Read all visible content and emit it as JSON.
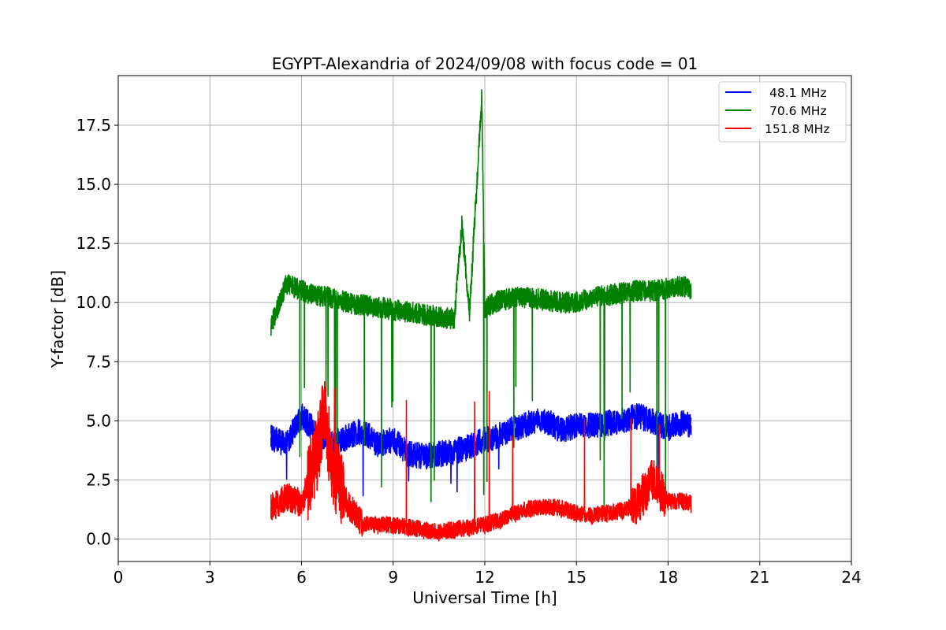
{
  "chart_data": {
    "type": "line",
    "title": "EGYPT-Alexandria of 2024/09/08 with focus code = 01",
    "xlabel": "Universal Time [h]",
    "ylabel": "Y-factor [dB]",
    "xlim": [
      0,
      24
    ],
    "ylim": [
      -0.95,
      19.6
    ],
    "xticks": [
      0,
      3,
      6,
      9,
      12,
      15,
      18,
      21,
      24
    ],
    "xtick_labels": [
      "0",
      "3",
      "6",
      "9",
      "12",
      "15",
      "18",
      "21",
      "24"
    ],
    "yticks": [
      0.0,
      2.5,
      5.0,
      7.5,
      10.0,
      12.5,
      15.0,
      17.5
    ],
    "ytick_labels": [
      "0.0",
      "2.5",
      "5.0",
      "7.5",
      "10.0",
      "12.5",
      "15.0",
      "17.5"
    ],
    "grid": true,
    "legend_position": "top-right",
    "series": [
      {
        "name": "48.1 MHz",
        "color": "#0000ff",
        "x": [
          5.0,
          5.5,
          6.0,
          6.5,
          7.0,
          7.5,
          8.0,
          8.5,
          9.0,
          9.5,
          10.0,
          10.5,
          11.0,
          11.5,
          12.0,
          12.5,
          13.0,
          13.5,
          14.0,
          14.5,
          15.0,
          15.5,
          16.0,
          16.5,
          17.0,
          17.5,
          18.0,
          18.5,
          18.75
        ],
        "y": [
          4.3,
          4.0,
          5.2,
          4.5,
          4.0,
          4.3,
          4.6,
          4.0,
          4.2,
          3.6,
          3.5,
          3.6,
          3.7,
          3.9,
          4.2,
          4.4,
          4.7,
          4.9,
          5.0,
          4.6,
          4.8,
          4.8,
          4.9,
          5.0,
          5.2,
          5.0,
          4.7,
          4.9,
          4.8
        ]
      },
      {
        "name": "70.6 MHz",
        "color": "#008000",
        "x": [
          5.0,
          5.5,
          6.0,
          6.5,
          7.0,
          7.5,
          8.0,
          8.5,
          9.0,
          9.5,
          10.0,
          10.5,
          11.0,
          11.25,
          11.5,
          11.9,
          12.0,
          12.5,
          13.0,
          13.5,
          14.0,
          14.5,
          15.0,
          15.5,
          16.0,
          16.5,
          17.0,
          17.5,
          18.0,
          18.5,
          18.75
        ],
        "y": [
          9.0,
          10.8,
          10.5,
          10.3,
          10.2,
          10.0,
          9.9,
          9.8,
          9.7,
          9.6,
          9.5,
          9.4,
          9.3,
          13.3,
          9.6,
          18.7,
          9.8,
          10.1,
          10.2,
          10.2,
          10.1,
          10.0,
          10.0,
          10.2,
          10.3,
          10.4,
          10.5,
          10.5,
          10.6,
          10.7,
          10.6
        ]
      },
      {
        "name": "151.8 MHz",
        "color": "#ff0000",
        "x": [
          5.0,
          5.5,
          6.0,
          6.5,
          6.75,
          7.0,
          7.5,
          8.0,
          8.5,
          9.0,
          9.5,
          10.0,
          10.5,
          11.0,
          11.5,
          12.0,
          12.5,
          13.0,
          13.5,
          14.0,
          14.5,
          15.0,
          15.5,
          16.0,
          16.5,
          17.0,
          17.5,
          18.0,
          18.5,
          18.75
        ],
        "y": [
          1.3,
          1.8,
          1.5,
          3.5,
          5.5,
          3.0,
          1.5,
          0.6,
          0.6,
          0.6,
          0.5,
          0.4,
          0.3,
          0.4,
          0.5,
          0.6,
          0.8,
          1.1,
          1.3,
          1.4,
          1.3,
          1.1,
          1.0,
          1.1,
          1.2,
          1.5,
          2.5,
          1.6,
          1.6,
          1.5
        ]
      }
    ]
  }
}
